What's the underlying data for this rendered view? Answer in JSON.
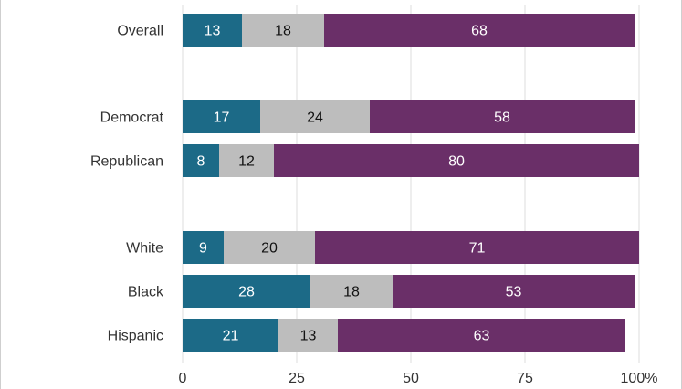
{
  "chart_data": {
    "type": "bar",
    "orientation": "horizontal",
    "stacked": true,
    "categories": [
      "Overall",
      "Democrat",
      "Republican",
      "White",
      "Black",
      "Hispanic"
    ],
    "groups": [
      [
        "Overall"
      ],
      [
        "Democrat",
        "Republican"
      ],
      [
        "White",
        "Black",
        "Hispanic"
      ]
    ],
    "series": [
      {
        "color": "#1c6a87",
        "label_color": "#ffffff",
        "values": [
          13,
          17,
          8,
          9,
          28,
          21
        ]
      },
      {
        "color": "#bdbdbd",
        "label_color": "#111111",
        "values": [
          18,
          24,
          12,
          20,
          18,
          13
        ]
      },
      {
        "color": "#6a2f68",
        "label_color": "#ffffff",
        "values": [
          68,
          58,
          80,
          71,
          53,
          63
        ]
      }
    ],
    "xlim": [
      0,
      100
    ],
    "x_ticks": [
      0,
      25,
      50,
      75,
      100
    ],
    "x_tick_labels": [
      "0",
      "25",
      "50",
      "75",
      "100%"
    ],
    "grid": true,
    "legend": "none"
  }
}
